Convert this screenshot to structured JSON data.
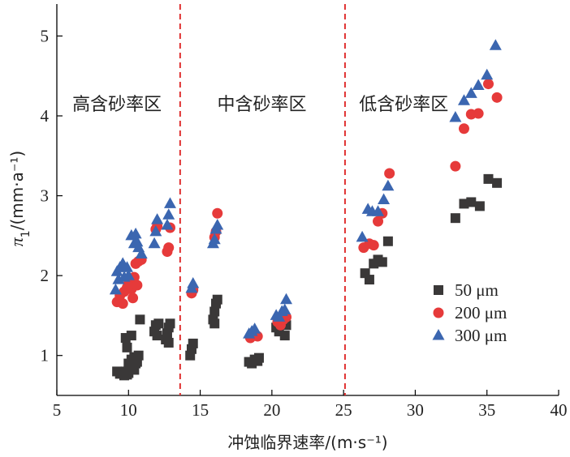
{
  "chart_data": {
    "type": "scatter",
    "title": "",
    "xlabel": "冲蚀临界速率/(m·s⁻¹)",
    "ylabel_symbol": "π",
    "ylabel_subscript": "1",
    "ylabel_unit": "/(mm·a⁻¹)",
    "xlim": [
      5,
      40
    ],
    "ylim": [
      0.5,
      5.4
    ],
    "xticks": [
      5,
      10,
      15,
      20,
      25,
      30,
      35,
      40
    ],
    "yticks": [
      1,
      2,
      3,
      4,
      5
    ],
    "grid": false,
    "legend_position": "right-middle",
    "zones": [
      {
        "label": "高含砂率区",
        "x_center": 9.2,
        "y": 4.15
      },
      {
        "label": "中含砂率区",
        "x_center": 19.3,
        "y": 4.15
      },
      {
        "label": "低含砂率区",
        "x_center": 29.2,
        "y": 4.15
      }
    ],
    "dividers": [
      {
        "x": 13.6,
        "color": "#e03030"
      },
      {
        "x": 25.1,
        "color": "#e03030"
      }
    ],
    "series": [
      {
        "name": "50 μm",
        "marker": "square",
        "color": "#3a3838",
        "points": [
          [
            9.2,
            0.8
          ],
          [
            9.4,
            0.77
          ],
          [
            9.6,
            0.79
          ],
          [
            9.7,
            0.75
          ],
          [
            9.8,
            0.8
          ],
          [
            9.9,
            0.76
          ],
          [
            10.0,
            0.78
          ],
          [
            10.0,
            0.9
          ],
          [
            10.1,
            0.85
          ],
          [
            10.2,
            0.95
          ],
          [
            10.3,
            0.85
          ],
          [
            10.4,
            0.98
          ],
          [
            10.5,
            0.9
          ],
          [
            10.6,
            0.92
          ],
          [
            10.7,
            1.0
          ],
          [
            9.8,
            1.22
          ],
          [
            10.2,
            1.25
          ],
          [
            10.8,
            1.45
          ],
          [
            9.9,
            1.1
          ],
          [
            10.4,
            0.82
          ],
          [
            11.8,
            1.3
          ],
          [
            11.9,
            1.38
          ],
          [
            12.0,
            1.25
          ],
          [
            12.1,
            1.4
          ],
          [
            12.6,
            1.2
          ],
          [
            12.7,
            1.28
          ],
          [
            12.8,
            1.35
          ],
          [
            12.9,
            1.4
          ],
          [
            12.8,
            1.16
          ],
          [
            14.3,
            1.0
          ],
          [
            14.4,
            1.08
          ],
          [
            14.5,
            1.15
          ],
          [
            15.9,
            1.45
          ],
          [
            16.0,
            1.55
          ],
          [
            16.1,
            1.65
          ],
          [
            16.2,
            1.7
          ],
          [
            16.0,
            1.4
          ],
          [
            18.4,
            0.92
          ],
          [
            18.6,
            0.9
          ],
          [
            18.8,
            0.95
          ],
          [
            19.0,
            0.93
          ],
          [
            19.1,
            0.97
          ],
          [
            20.3,
            1.35
          ],
          [
            20.5,
            1.3
          ],
          [
            20.7,
            1.4
          ],
          [
            20.9,
            1.25
          ],
          [
            21.0,
            1.38
          ],
          [
            26.5,
            2.03
          ],
          [
            26.8,
            1.95
          ],
          [
            27.1,
            2.15
          ],
          [
            27.4,
            2.2
          ],
          [
            27.7,
            2.17
          ],
          [
            28.1,
            2.43
          ],
          [
            32.8,
            2.72
          ],
          [
            33.4,
            2.9
          ],
          [
            33.9,
            2.92
          ],
          [
            34.5,
            2.87
          ],
          [
            35.1,
            3.21
          ],
          [
            35.7,
            3.16
          ]
        ]
      },
      {
        "name": "200 μm",
        "marker": "circle",
        "color": "#e63a3a",
        "points": [
          [
            9.2,
            1.67
          ],
          [
            9.4,
            1.75
          ],
          [
            9.6,
            1.65
          ],
          [
            9.7,
            1.8
          ],
          [
            9.9,
            1.85
          ],
          [
            10.0,
            1.9
          ],
          [
            10.1,
            1.95
          ],
          [
            10.2,
            1.83
          ],
          [
            10.4,
            1.98
          ],
          [
            10.5,
            2.15
          ],
          [
            10.6,
            1.88
          ],
          [
            10.7,
            2.18
          ],
          [
            10.9,
            2.2
          ],
          [
            10.3,
            1.72
          ],
          [
            11.9,
            2.58
          ],
          [
            12.0,
            2.62
          ],
          [
            12.7,
            2.3
          ],
          [
            12.8,
            2.35
          ],
          [
            12.9,
            2.6
          ],
          [
            14.4,
            1.78
          ],
          [
            14.5,
            1.82
          ],
          [
            16.0,
            2.48
          ],
          [
            16.1,
            2.55
          ],
          [
            16.2,
            2.78
          ],
          [
            18.5,
            1.22
          ],
          [
            18.8,
            1.25
          ],
          [
            19.0,
            1.24
          ],
          [
            20.4,
            1.42
          ],
          [
            20.6,
            1.38
          ],
          [
            20.8,
            1.45
          ],
          [
            21.0,
            1.48
          ],
          [
            26.4,
            2.35
          ],
          [
            26.8,
            2.4
          ],
          [
            27.1,
            2.38
          ],
          [
            27.4,
            2.68
          ],
          [
            27.7,
            2.78
          ],
          [
            28.2,
            3.28
          ],
          [
            32.8,
            3.37
          ],
          [
            33.4,
            3.84
          ],
          [
            33.9,
            4.02
          ],
          [
            34.4,
            4.03
          ],
          [
            35.1,
            4.4
          ],
          [
            35.7,
            4.23
          ]
        ]
      },
      {
        "name": "300 μm",
        "marker": "triangle",
        "color": "#3b66b0",
        "points": [
          [
            9.1,
            1.82
          ],
          [
            9.2,
            2.05
          ],
          [
            9.3,
            1.95
          ],
          [
            9.4,
            2.1
          ],
          [
            9.6,
            2.15
          ],
          [
            9.7,
            1.98
          ],
          [
            9.9,
            2.1
          ],
          [
            10.0,
            2.0
          ],
          [
            10.2,
            2.5
          ],
          [
            10.4,
            2.4
          ],
          [
            10.5,
            2.52
          ],
          [
            10.6,
            2.42
          ],
          [
            10.7,
            2.35
          ],
          [
            10.9,
            2.27
          ],
          [
            11.8,
            2.4
          ],
          [
            11.9,
            2.55
          ],
          [
            12.0,
            2.7
          ],
          [
            12.7,
            2.63
          ],
          [
            12.8,
            2.76
          ],
          [
            12.9,
            2.9
          ],
          [
            14.4,
            1.84
          ],
          [
            14.5,
            1.9
          ],
          [
            15.9,
            2.4
          ],
          [
            16.0,
            2.45
          ],
          [
            16.1,
            2.58
          ],
          [
            16.2,
            2.63
          ],
          [
            18.4,
            1.27
          ],
          [
            18.6,
            1.3
          ],
          [
            18.8,
            1.33
          ],
          [
            20.3,
            1.5
          ],
          [
            20.5,
            1.48
          ],
          [
            20.7,
            1.55
          ],
          [
            20.9,
            1.57
          ],
          [
            21.0,
            1.7
          ],
          [
            26.3,
            2.48
          ],
          [
            26.7,
            2.83
          ],
          [
            27.0,
            2.8
          ],
          [
            27.4,
            2.8
          ],
          [
            27.8,
            2.95
          ],
          [
            28.1,
            3.12
          ],
          [
            32.8,
            3.98
          ],
          [
            33.4,
            4.19
          ],
          [
            33.9,
            4.28
          ],
          [
            34.4,
            4.38
          ],
          [
            35.0,
            4.51
          ],
          [
            35.6,
            4.88
          ]
        ]
      }
    ]
  }
}
